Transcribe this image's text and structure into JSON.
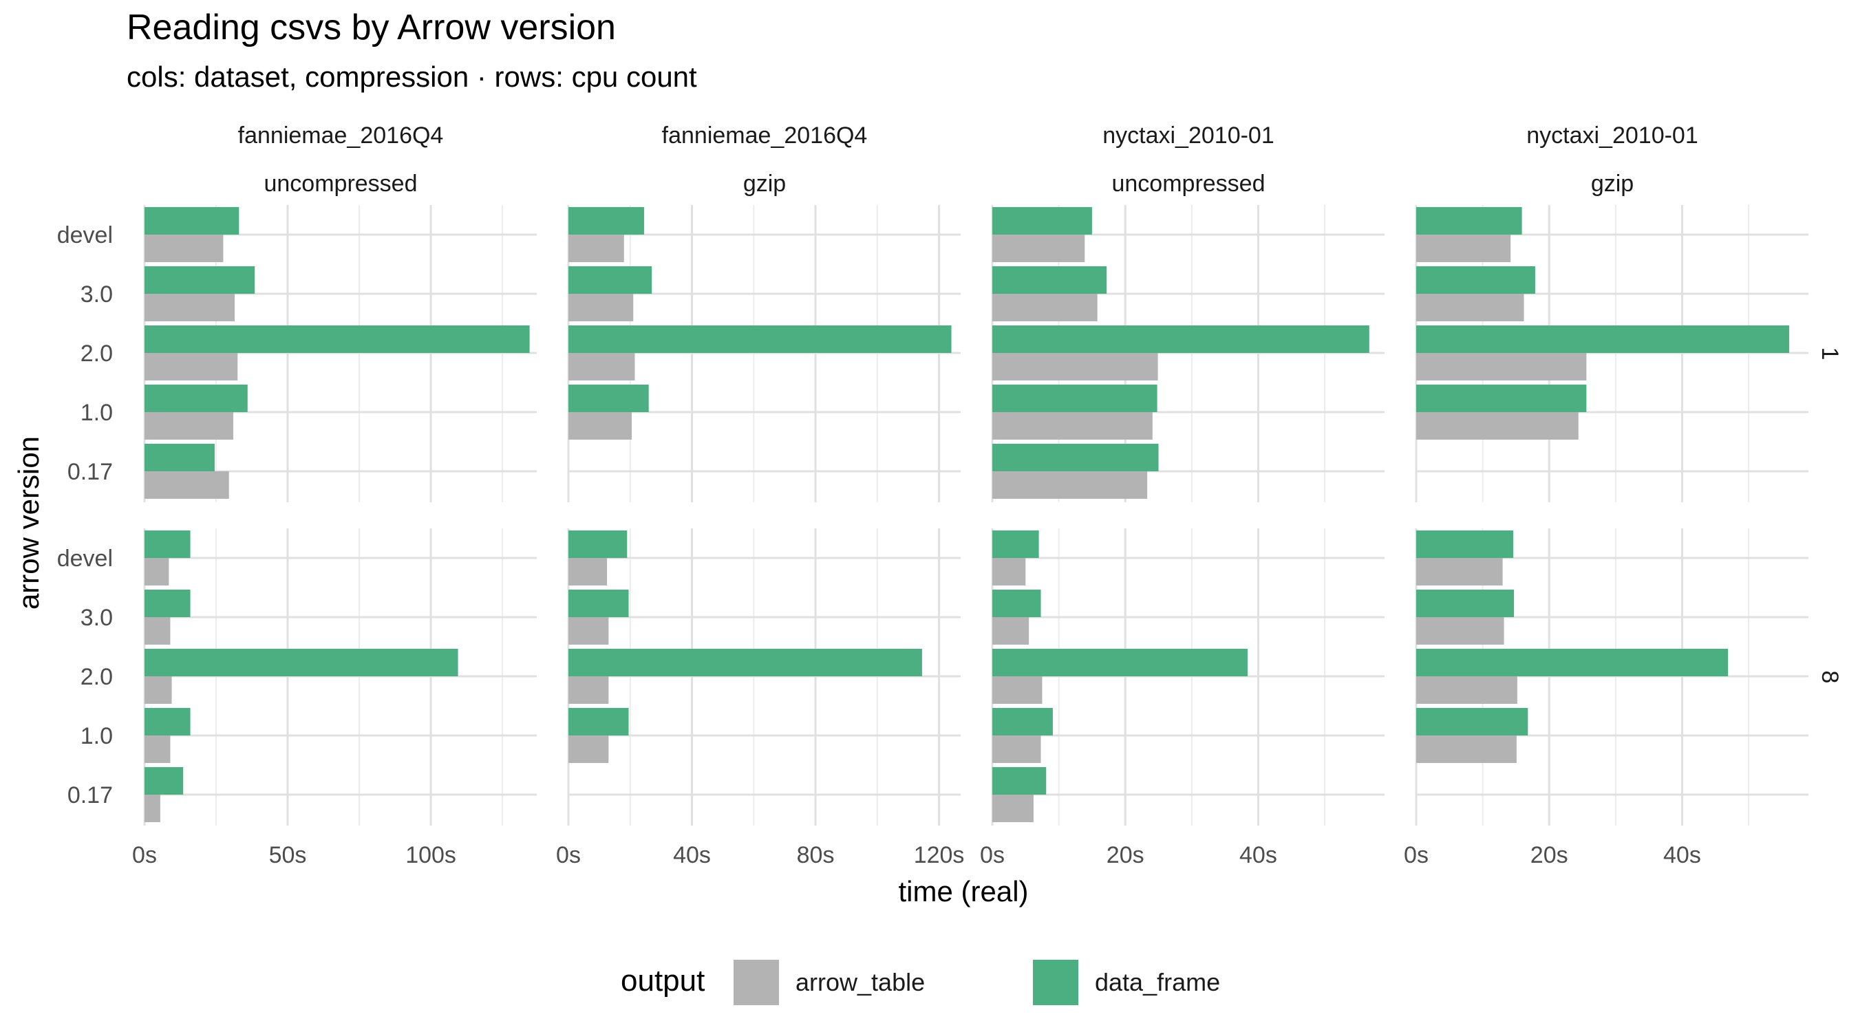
{
  "chart_data": {
    "type": "bar",
    "orientation": "horizontal",
    "title": "Reading csvs by Arrow version",
    "subtitle": "cols: dataset, compression · rows: cpu count",
    "xlabel": "time (real)",
    "ylabel": "arrow version",
    "categories": [
      "devel",
      "3.0",
      "2.0",
      "1.0",
      "0.17"
    ],
    "legend": {
      "title": "output",
      "position": "bottom",
      "entries": [
        {
          "name": "arrow_table",
          "color": "#b3b3b3"
        },
        {
          "name": "data_frame",
          "color": "#4caf82"
        }
      ]
    },
    "grid": true,
    "columns": [
      {
        "dataset": "fanniemae_2016Q4",
        "compression": "uncompressed",
        "xlim": [
          0,
          137
        ],
        "ticks": [
          0,
          50,
          100
        ],
        "tick_labels": [
          "0s",
          "50s",
          "100s"
        ]
      },
      {
        "dataset": "fanniemae_2016Q4",
        "compression": "gzip",
        "xlim": [
          0,
          127
        ],
        "ticks": [
          0,
          40,
          80,
          120
        ],
        "tick_labels": [
          "0s",
          "40s",
          "80s",
          "120s"
        ]
      },
      {
        "dataset": "nyctaxi_2010-01",
        "compression": "uncompressed",
        "xlim": [
          0,
          59
        ],
        "ticks": [
          0,
          20,
          40
        ],
        "tick_labels": [
          "0s",
          "20s",
          "40s"
        ]
      },
      {
        "dataset": "nyctaxi_2010-01",
        "compression": "gzip",
        "xlim": [
          0,
          59
        ],
        "ticks": [
          0,
          20,
          40
        ],
        "tick_labels": [
          "0s",
          "20s",
          "40s"
        ]
      }
    ],
    "rows": [
      {
        "label": "1"
      },
      {
        "label": "8"
      }
    ],
    "panels": [
      {
        "row": 0,
        "col": 0,
        "data_frame": [
          33,
          38.5,
          134.5,
          36,
          24.5
        ],
        "arrow_table": [
          27.5,
          31.5,
          32.5,
          31,
          29.5
        ]
      },
      {
        "row": 0,
        "col": 1,
        "data_frame": [
          24.5,
          27,
          124,
          26,
          null
        ],
        "arrow_table": [
          18,
          21,
          21.5,
          20.5,
          null
        ]
      },
      {
        "row": 0,
        "col": 2,
        "data_frame": [
          15,
          17.2,
          56.7,
          24.8,
          25
        ],
        "arrow_table": [
          13.9,
          15.8,
          24.9,
          24.1,
          23.3
        ]
      },
      {
        "row": 0,
        "col": 3,
        "data_frame": [
          15.9,
          17.9,
          56.1,
          25.6,
          null
        ],
        "arrow_table": [
          14.2,
          16.2,
          25.6,
          24.4,
          null
        ]
      },
      {
        "row": 1,
        "col": 0,
        "data_frame": [
          16,
          16,
          109.5,
          16,
          13.5
        ],
        "arrow_table": [
          8.5,
          9,
          9.5,
          9,
          5.5
        ]
      },
      {
        "row": 1,
        "col": 1,
        "data_frame": [
          19,
          19.5,
          114.5,
          19.5,
          null
        ],
        "arrow_table": [
          12.5,
          13,
          13,
          13,
          null
        ]
      },
      {
        "row": 1,
        "col": 2,
        "data_frame": [
          7,
          7.3,
          38.4,
          9.1,
          8.1
        ],
        "arrow_table": [
          5,
          5.5,
          7.5,
          7.3,
          6.2
        ]
      },
      {
        "row": 1,
        "col": 3,
        "data_frame": [
          14.6,
          14.7,
          46.9,
          16.8,
          null
        ],
        "arrow_table": [
          13,
          13.2,
          15.2,
          15.1,
          null
        ]
      }
    ]
  }
}
